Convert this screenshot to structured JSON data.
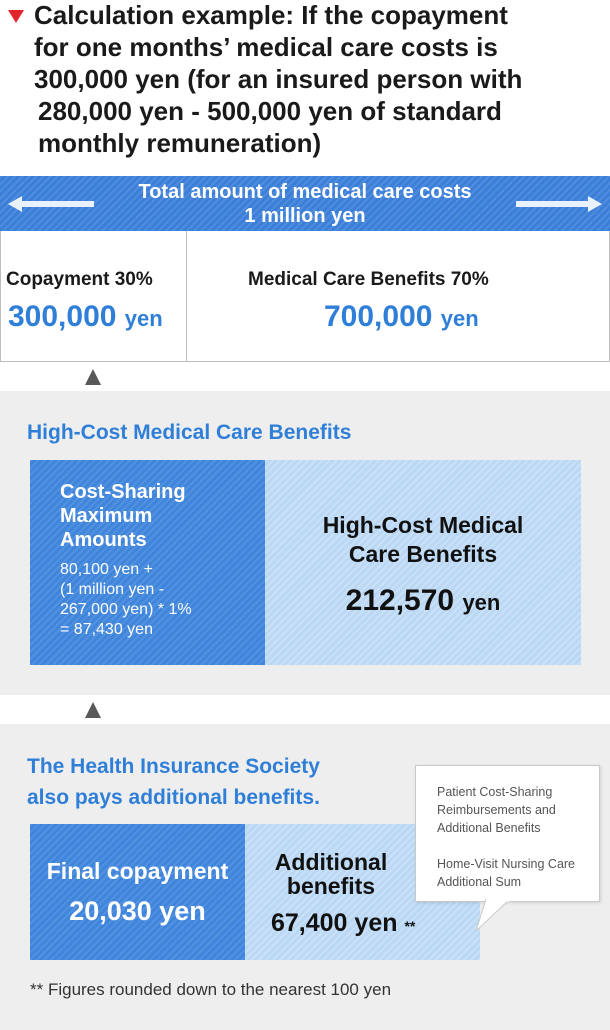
{
  "heading": {
    "lines": [
      "Calculation example: If the copayment",
      "for one months’ medical care costs is",
      "300,000 yen (for an insured person with",
      "280,000 yen - 500,000 yen of standard",
      "monthly remuneration)"
    ]
  },
  "total_bar": {
    "line1": "Total amount of medical care costs",
    "line2": "1 million yen"
  },
  "split": {
    "copayment": {
      "label": "Copayment 30%",
      "amount": "300,000",
      "unit": "yen"
    },
    "benefits": {
      "label": "Medical Care Benefits 70%",
      "amount": "700,000",
      "unit": "yen"
    }
  },
  "high_cost": {
    "title": "High-Cost Medical Care Benefits",
    "cost_sharing": {
      "heading": [
        "Cost-Sharing",
        "Maximum",
        "Amounts"
      ],
      "formula": [
        "80,100 yen +",
        "(1 million yen -",
        "267,000 yen) * 1%",
        "= 87,430 yen"
      ]
    },
    "benefit": {
      "label_lines": [
        "High-Cost Medical",
        "Care Benefits"
      ],
      "amount": "212,570",
      "unit": "yen"
    }
  },
  "additional": {
    "title_lines": [
      "The Health Insurance Society",
      "also pays additional benefits."
    ],
    "final": {
      "label": "Final copayment",
      "amount": "20,030 yen"
    },
    "extra": {
      "label_lines": [
        "Additional",
        "benefits"
      ],
      "amount": "67,400 yen",
      "mark": "**"
    },
    "callout": [
      "Patient Cost-Sharing",
      "Reimbursements and",
      "Additional Benefits",
      "Home-Visit Nursing Care",
      "Additional Sum"
    ],
    "note": "** Figures rounded down to the nearest 100 yen"
  },
  "colors": {
    "accent_blue": "#2f7fd8",
    "bar_blue": "#3b7fd9",
    "light_blue": "#bad8f4",
    "marker_red": "#e2242b",
    "panel_gray": "#eeeeee"
  }
}
